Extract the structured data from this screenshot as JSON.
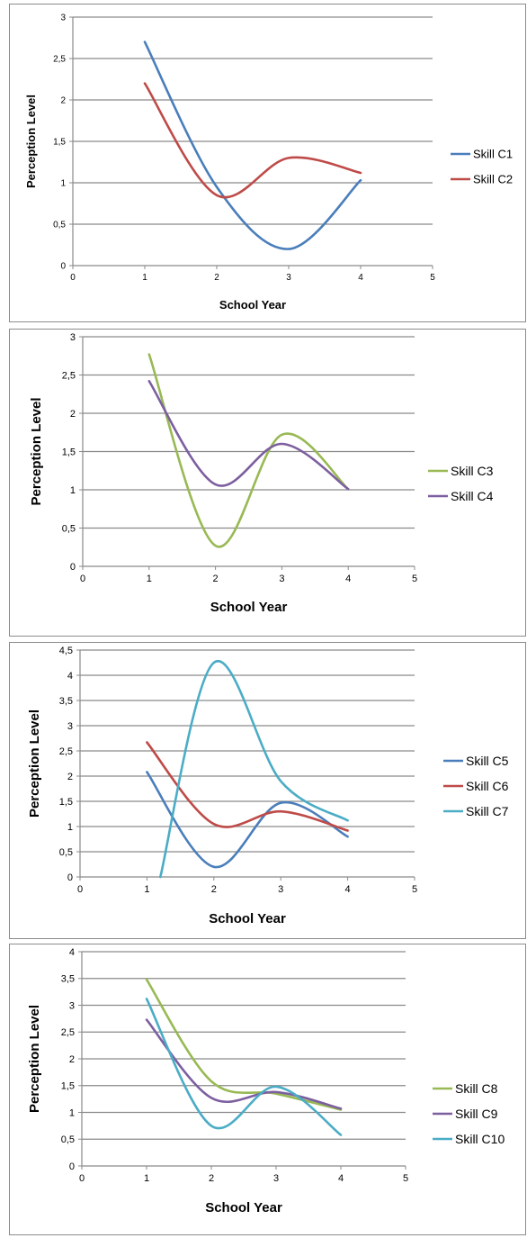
{
  "chart_data": [
    {
      "type": "line",
      "xlabel": "School Year",
      "ylabel": "Perception Level",
      "xlim": [
        0,
        5
      ],
      "ylim": [
        0,
        3
      ],
      "xticks": [
        "0",
        "1",
        "2",
        "3",
        "4",
        "5"
      ],
      "yticks": [
        "0",
        "0,5",
        "1",
        "1,5",
        "2",
        "2,5",
        "3"
      ],
      "legend_position": "right",
      "grid": "horizontal",
      "series": [
        {
          "name": "Skill C1",
          "color": "#4a7ebb",
          "x": [
            1,
            2,
            3,
            4
          ],
          "values": [
            2.7,
            0.95,
            0.2,
            1.03
          ]
        },
        {
          "name": "Skill C2",
          "color": "#be4b48",
          "x": [
            1,
            2,
            3,
            4
          ],
          "values": [
            2.2,
            0.85,
            1.3,
            1.12
          ]
        }
      ]
    },
    {
      "type": "line",
      "xlabel": "School Year",
      "ylabel": "Perception Level",
      "xlim": [
        0,
        5
      ],
      "ylim": [
        0,
        3
      ],
      "xticks": [
        "0",
        "1",
        "2",
        "3",
        "4",
        "5"
      ],
      "yticks": [
        "0",
        "0,5",
        "1",
        "1,5",
        "2",
        "2,5",
        "3"
      ],
      "legend_position": "right",
      "grid": "horizontal",
      "series": [
        {
          "name": "Skill C3",
          "color": "#98b954",
          "x": [
            1,
            2,
            3,
            4
          ],
          "values": [
            2.77,
            0.27,
            1.72,
            1.01
          ]
        },
        {
          "name": "Skill C4",
          "color": "#7d5fa0",
          "x": [
            1,
            2,
            3,
            4
          ],
          "values": [
            2.42,
            1.07,
            1.6,
            1.01
          ]
        }
      ]
    },
    {
      "type": "line",
      "xlabel": "School Year",
      "ylabel": "Perception Level",
      "xlim": [
        0,
        5
      ],
      "ylim": [
        0,
        4.5
      ],
      "xticks": [
        "0",
        "1",
        "2",
        "3",
        "4",
        "5"
      ],
      "yticks": [
        "0",
        "0,5",
        "1",
        "1,5",
        "2",
        "2,5",
        "3",
        "3,5",
        "4",
        "4,5"
      ],
      "legend_position": "right",
      "grid": "horizontal",
      "series": [
        {
          "name": "Skill C5",
          "color": "#4a7ebb",
          "x": [
            1,
            2,
            3,
            4
          ],
          "values": [
            2.08,
            0.2,
            1.47,
            0.8
          ]
        },
        {
          "name": "Skill C6",
          "color": "#be4b48",
          "x": [
            1,
            2,
            3,
            4
          ],
          "values": [
            2.67,
            1.05,
            1.3,
            0.92
          ]
        },
        {
          "name": "Skill C7",
          "color": "#4bacc6",
          "x": [
            1.2,
            2,
            3,
            4
          ],
          "values": [
            0,
            4.25,
            1.9,
            1.12
          ]
        }
      ]
    },
    {
      "type": "line",
      "xlabel": "School Year",
      "ylabel": "Perception Level",
      "xlim": [
        0,
        5
      ],
      "ylim": [
        0,
        4
      ],
      "xticks": [
        "0",
        "1",
        "2",
        "3",
        "4",
        "5"
      ],
      "yticks": [
        "0",
        "0,5",
        "1",
        "1,5",
        "2",
        "2,5",
        "3",
        "3,5",
        "4"
      ],
      "legend_position": "right",
      "grid": "horizontal",
      "series": [
        {
          "name": "Skill C8",
          "color": "#98b954",
          "x": [
            1,
            2,
            3,
            4
          ],
          "values": [
            3.48,
            1.58,
            1.35,
            1.05
          ]
        },
        {
          "name": "Skill C9",
          "color": "#7d5fa0",
          "x": [
            1,
            2,
            3,
            4
          ],
          "values": [
            2.73,
            1.27,
            1.38,
            1.07
          ]
        },
        {
          "name": "Skill C10",
          "color": "#4bacc6",
          "x": [
            1,
            2,
            3,
            4
          ],
          "values": [
            3.12,
            0.75,
            1.48,
            0.58
          ]
        }
      ]
    }
  ]
}
